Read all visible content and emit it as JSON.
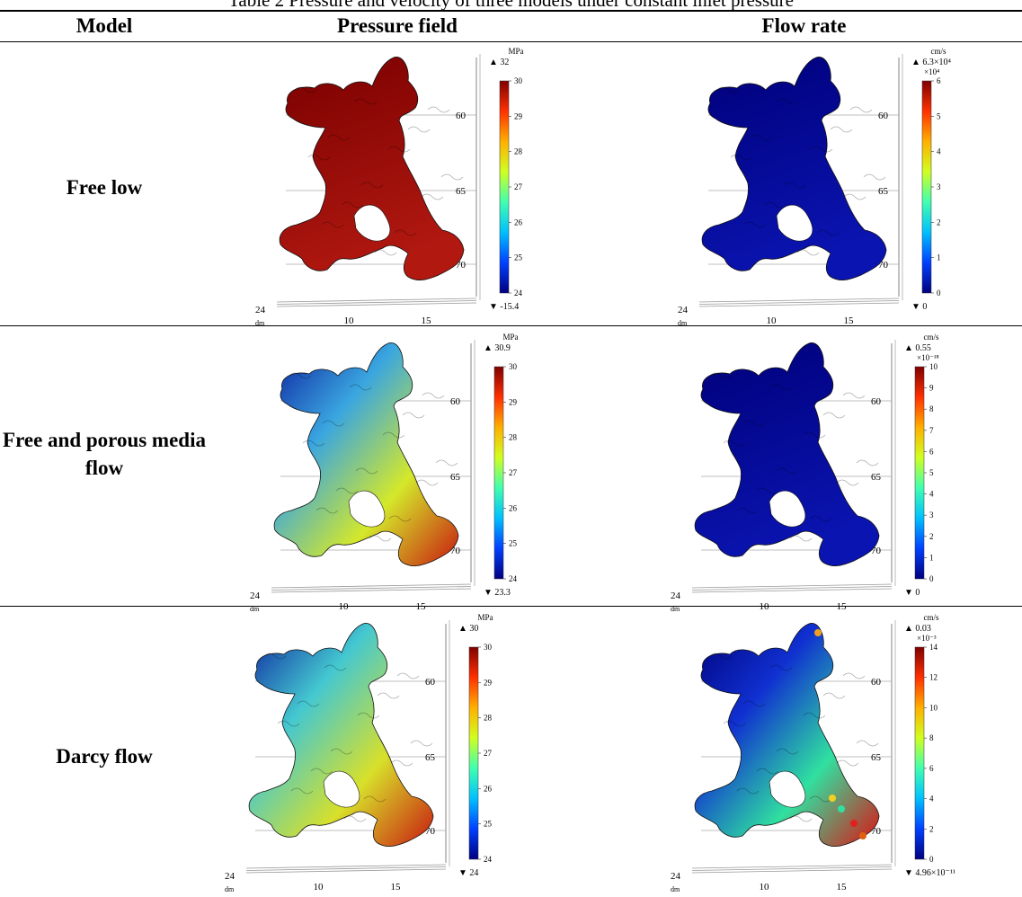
{
  "caption": "Table 2 Pressure and velocity of three models under constant inlet pressure",
  "header": {
    "model": "Model",
    "pressure": "Pressure field",
    "flow": "Flow rate"
  },
  "axis": {
    "y_ticks": [
      "60",
      "65",
      "70"
    ],
    "x_ticks": [
      "10",
      "15"
    ],
    "corner": "24",
    "unit": "dm"
  },
  "rows": [
    {
      "model": "Free low",
      "pressure": {
        "unit": "MPa",
        "max_label": "32",
        "min_label": "-15.4",
        "multiplier": "",
        "ticks": [
          "30",
          "29",
          "28",
          "27",
          "26",
          "25",
          "24"
        ],
        "fill": "uniform-red",
        "colors": [
          "#7a0000",
          "#b01810"
        ]
      },
      "flow": {
        "unit": "cm/s",
        "max_label": "6.3×10⁴",
        "min_label": "0",
        "multiplier": "×10⁴",
        "ticks": [
          "6",
          "5",
          "4",
          "3",
          "2",
          "1",
          "0"
        ],
        "fill": "uniform-blue",
        "colors": [
          "#00007a",
          "#0a14b0"
        ]
      }
    },
    {
      "model": "Free and porous media flow",
      "pressure": {
        "unit": "MPa",
        "max_label": "30.9",
        "min_label": "23.3",
        "multiplier": "",
        "ticks": [
          "30",
          "29",
          "28",
          "27",
          "26",
          "25",
          "24"
        ],
        "fill": "gradient-blue-cyan-red",
        "colors": [
          "#0a1a9c",
          "#3aa6e0",
          "#d4e82a",
          "#c81810"
        ]
      },
      "flow": {
        "unit": "cm/s",
        "max_label": "0.55",
        "min_label": "0",
        "multiplier": "×10⁻¹⁸",
        "ticks": [
          "10",
          "9",
          "8",
          "7",
          "6",
          "5",
          "4",
          "3",
          "2",
          "1",
          "0"
        ],
        "fill": "uniform-blue",
        "colors": [
          "#00007a",
          "#0a14b0"
        ]
      }
    },
    {
      "model": "Darcy flow",
      "pressure": {
        "unit": "MPa",
        "max_label": "30",
        "min_label": "24",
        "multiplier": "",
        "ticks": [
          "30",
          "29",
          "28",
          "27",
          "26",
          "25",
          "24"
        ],
        "fill": "gradient-blue-cyan-red",
        "colors": [
          "#0a1a9c",
          "#44c8d0",
          "#d8e02a",
          "#c81810"
        ]
      },
      "flow": {
        "unit": "cm/s",
        "max_label": "0.03",
        "min_label": "4.96×10⁻¹¹",
        "multiplier": "×10⁻³",
        "ticks": [
          "14",
          "12",
          "10",
          "8",
          "6",
          "4",
          "2",
          "0"
        ],
        "fill": "blue-with-hotspots",
        "colors": [
          "#00007a",
          "#1030d0",
          "#30e0a0",
          "#e01010"
        ]
      }
    }
  ]
}
